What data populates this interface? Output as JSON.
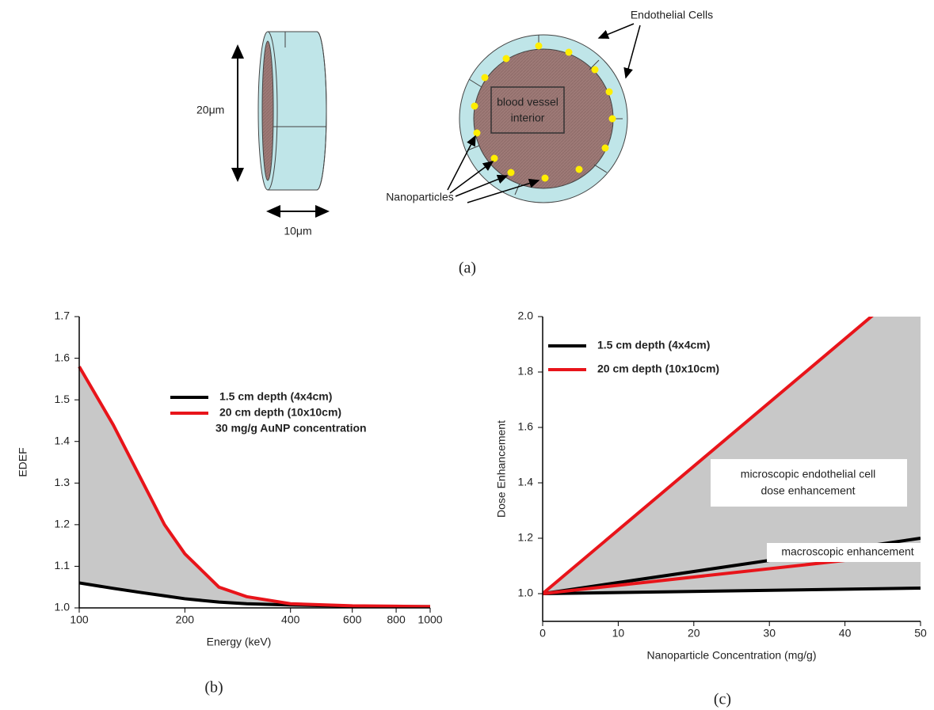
{
  "diagram": {
    "height_label": "20μm",
    "width_label": "10μm",
    "interior_label": [
      "blood vessel",
      "interior"
    ],
    "cells_label": "Endothelial Cells",
    "particles_label": "Nanoparticles"
  },
  "captions": [
    "(a)",
    "(b)",
    "(c)"
  ],
  "chart_data": [
    {
      "type": "line",
      "x_label": "Energy (keV)",
      "y_label": "EDEF",
      "log_x": true,
      "shade_between": true,
      "annotation": "30 mg/g AuNP concentration",
      "x": [
        100,
        125,
        150,
        175,
        200,
        250,
        300,
        400,
        600,
        800,
        1000
      ],
      "series": [
        {
          "name": "1.5 cm depth (4x4cm)",
          "color": "#000000",
          "values": [
            1.06,
            1.047,
            1.037,
            1.029,
            1.022,
            1.014,
            1.01,
            1.007,
            1.004,
            1.003,
            1.003
          ]
        },
        {
          "name": "20 cm depth (10x10cm)",
          "color": "#e8141a",
          "values": [
            1.58,
            1.44,
            1.31,
            1.2,
            1.13,
            1.05,
            1.027,
            1.01,
            1.005,
            1.004,
            1.003
          ]
        }
      ],
      "xlim": [
        100,
        1000
      ],
      "xticks": [
        100,
        200,
        400,
        600,
        800,
        1000
      ],
      "ylim": [
        1,
        1.7
      ],
      "yticks": [
        {
          "value": 1,
          "label": "1.0"
        },
        1.1,
        1.2,
        1.3,
        1.4,
        1.5,
        1.6,
        1.7
      ]
    },
    {
      "type": "line",
      "x_label": "Nanoparticle Concentration (mg/g)",
      "y_label": "Dose Enhancement",
      "shade_between": true,
      "annotations": [
        [
          "microscopic endothelial cell",
          "dose enhancement"
        ],
        "macroscopic enhancement"
      ],
      "x": [
        0,
        50
      ],
      "series": [
        {
          "name": "1.5 cm depth (4x4cm)",
          "color": "#000000",
          "values": [
            1.0,
            1.2
          ],
          "macroscopic_values": [
            1.0,
            1.02
          ]
        },
        {
          "name": "20 cm depth (10x10cm)",
          "color": "#e8141a",
          "values": [
            1.0,
            2.15
          ],
          "macroscopic_values": [
            1.0,
            1.15
          ]
        }
      ],
      "xlim": [
        0,
        50
      ],
      "xticks": [
        0,
        10,
        20,
        30,
        40,
        50
      ],
      "ylim": [
        0.9,
        2.0
      ],
      "yticks": [
        {
          "value": 1,
          "label": "1.0"
        },
        1.2,
        1.4,
        1.6,
        1.8,
        {
          "value": 2,
          "label": "2.0"
        }
      ]
    }
  ]
}
